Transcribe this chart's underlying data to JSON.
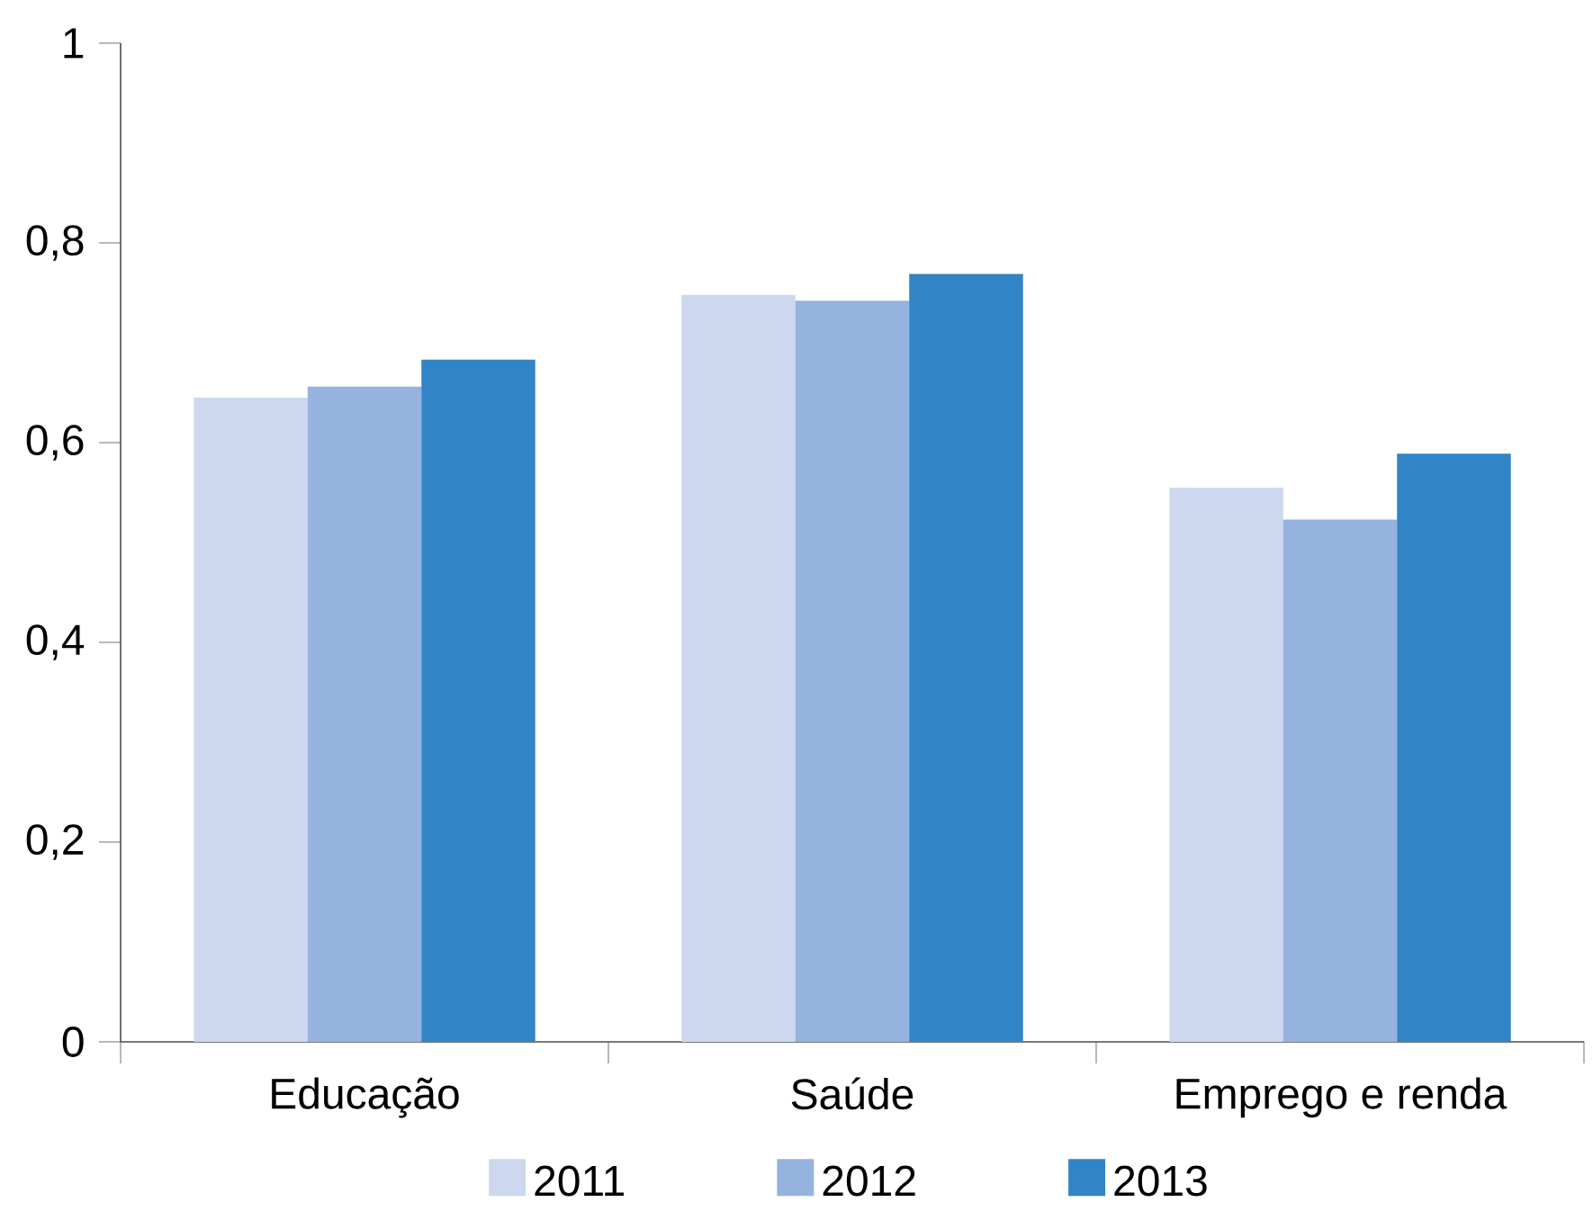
{
  "chart_data": {
    "type": "bar",
    "categories": [
      "Educação",
      "Saúde",
      "Emprego e renda"
    ],
    "series": [
      {
        "name": "2011",
        "color": "#cdd8ef",
        "values": [
          0.645,
          0.748,
          0.555
        ]
      },
      {
        "name": "2012",
        "color": "#95b3de",
        "values": [
          0.656,
          0.742,
          0.523
        ]
      },
      {
        "name": "2013",
        "color": "#3184c6",
        "values": [
          0.683,
          0.769,
          0.589
        ]
      }
    ],
    "ylim": [
      0,
      1
    ],
    "yticks": [
      0,
      {
        "value": 0.2,
        "label": "0,2"
      },
      {
        "value": 0.4,
        "label": "0,4"
      },
      {
        "value": 0.6,
        "label": "0,6"
      },
      {
        "value": 0.8,
        "label": "0,8"
      },
      1
    ],
    "grid": false,
    "legend": "bottom"
  }
}
